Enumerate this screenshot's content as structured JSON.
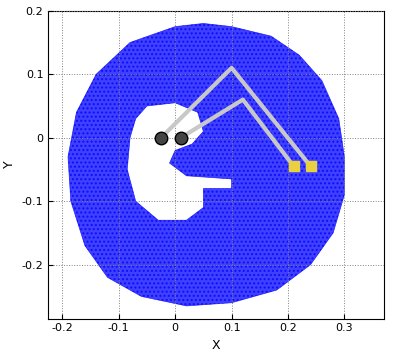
{
  "chart_data": {
    "type": "area",
    "xlabel": "X",
    "ylabel": "Y",
    "xlim": [
      -0.225,
      0.37
    ],
    "ylim": [
      -0.285,
      0.2
    ],
    "xticks": [
      -0.2,
      -0.1,
      0,
      0.1,
      0.2,
      0.3
    ],
    "yticks": [
      -0.2,
      -0.1,
      0,
      0.1,
      0.2
    ],
    "grid": true,
    "series": [
      {
        "type": "area",
        "color": "#0000ff",
        "marker": "dot",
        "outer": {
          "x": [
            0.1,
            0.17,
            0.22,
            0.26,
            0.29,
            0.3,
            0.3,
            0.28,
            0.24,
            0.18,
            0.1,
            0.02,
            -0.06,
            -0.12,
            -0.16,
            -0.185,
            -0.19,
            -0.175,
            -0.14,
            -0.08,
            0.0,
            0.05
          ],
          "y": [
            0.175,
            0.16,
            0.13,
            0.09,
            0.03,
            -0.03,
            -0.09,
            -0.15,
            -0.2,
            -0.24,
            -0.26,
            -0.265,
            -0.25,
            -0.22,
            -0.17,
            -0.1,
            -0.03,
            0.04,
            0.1,
            0.15,
            0.175,
            0.18
          ]
        },
        "inner": {
          "x": [
            -0.05,
            0.0,
            0.04,
            0.05,
            0.03,
            0.0,
            -0.01,
            0.02,
            0.1,
            0.1,
            0.05,
            0.05,
            0.02,
            -0.03,
            -0.07,
            -0.085,
            -0.08,
            -0.07
          ],
          "y": [
            0.05,
            0.055,
            0.04,
            0.01,
            -0.01,
            -0.02,
            -0.04,
            -0.06,
            -0.065,
            -0.08,
            -0.08,
            -0.11,
            -0.13,
            -0.13,
            -0.1,
            -0.05,
            0.0,
            0.03
          ]
        }
      },
      {
        "type": "line",
        "color": "#c8c8c8",
        "x": [
          -0.025,
          0.1,
          0.24
        ],
        "y": [
          0.0,
          0.11,
          -0.045
        ]
      },
      {
        "type": "line",
        "color": "#c8c8c8",
        "x": [
          0.01,
          0.12,
          0.21
        ],
        "y": [
          0.0,
          0.06,
          -0.045
        ]
      }
    ]
  }
}
